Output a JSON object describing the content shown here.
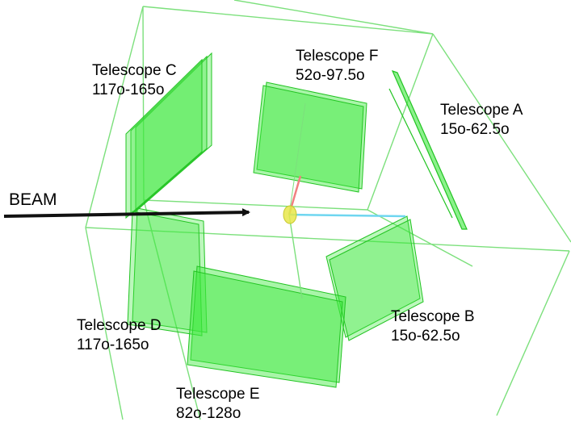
{
  "beam": {
    "label": "BEAM"
  },
  "telescopes": [
    {
      "id": "A",
      "name": "Telescope A",
      "range": "15o-62.5o"
    },
    {
      "id": "B",
      "name": "Telescope B",
      "range": "15o-62.5o"
    },
    {
      "id": "C",
      "name": "Telescope C",
      "range": "117o-165o"
    },
    {
      "id": "D",
      "name": "Telescope D",
      "range": "117o-165o"
    },
    {
      "id": "E",
      "name": "Telescope E",
      "range": "82o-128o"
    },
    {
      "id": "F",
      "name": "Telescope F",
      "range": "52o-97.5o"
    }
  ],
  "colors": {
    "frame": "#7ce07c",
    "detector_fill": "#3ee83e",
    "detector_stroke": "#22c422",
    "beam_arrow": "#111111",
    "track_red": "#f08080",
    "track_cyan": "#6fd6f0",
    "target": "#e8e84a"
  }
}
